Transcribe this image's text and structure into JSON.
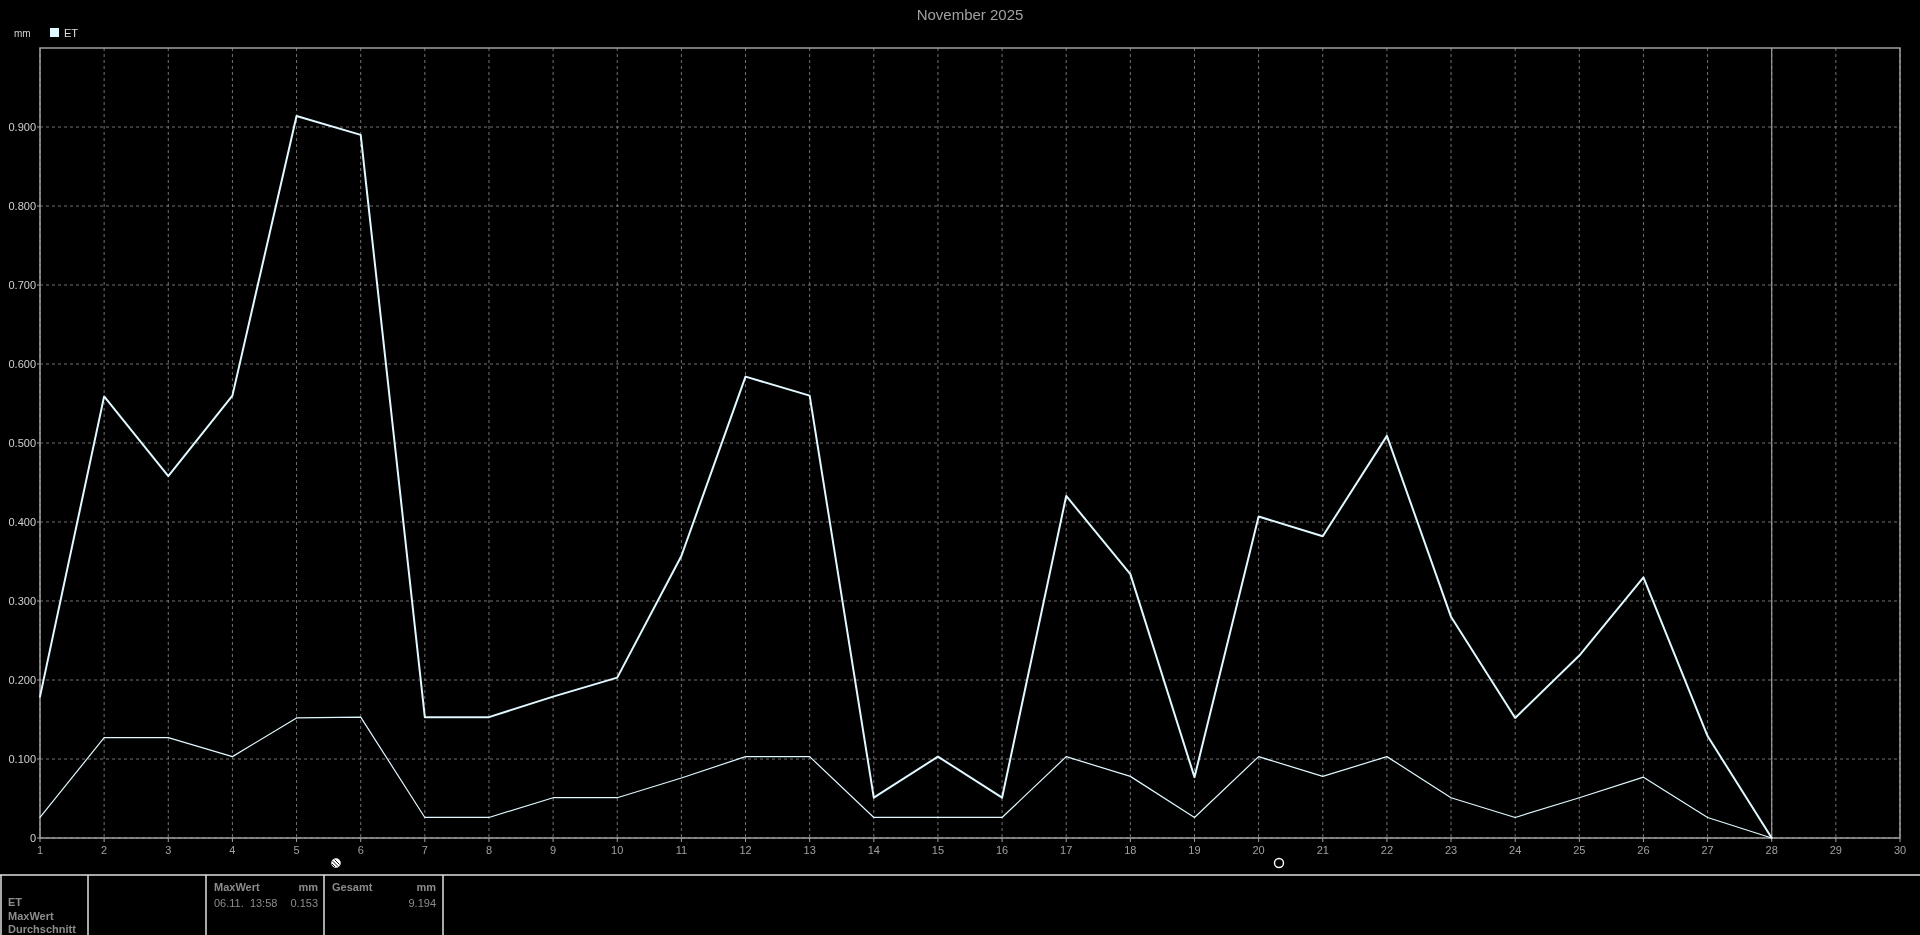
{
  "chart_data": {
    "type": "line",
    "title": "November 2025",
    "ylabel": "mm",
    "x": [
      1,
      2,
      3,
      4,
      5,
      6,
      7,
      8,
      9,
      10,
      11,
      12,
      13,
      14,
      15,
      16,
      17,
      18,
      19,
      20,
      21,
      22,
      23,
      24,
      25,
      26,
      27,
      28
    ],
    "series": [
      {
        "name": "ET",
        "color": "#e0f8ff",
        "values": [
          0.179,
          0.559,
          0.458,
          0.56,
          0.914,
          0.89,
          0.153,
          0.153,
          0.179,
          0.203,
          0.357,
          0.584,
          0.56,
          0.051,
          0.103,
          0.051,
          0.433,
          0.334,
          0.077,
          0.407,
          0.382,
          0.509,
          0.28,
          0.152,
          0.231,
          0.33,
          0.129,
          0
        ]
      },
      {
        "color": "#e0f8ff",
        "values": [
          0.026,
          0.127,
          0.127,
          0.103,
          0.152,
          0.153,
          0.026,
          0.026,
          0.051,
          0.051,
          0.076,
          0.103,
          0.103,
          0.026,
          0.026,
          0.026,
          0.103,
          0.078,
          0.026,
          0.103,
          0.078,
          0.103,
          0.051,
          0.026,
          0.051,
          0.077,
          0.026,
          0
        ]
      }
    ],
    "xlim": [
      1,
      30
    ],
    "xticks": [
      1,
      2,
      3,
      4,
      5,
      6,
      7,
      8,
      9,
      10,
      11,
      12,
      13,
      14,
      15,
      16,
      17,
      18,
      19,
      20,
      21,
      22,
      23,
      24,
      25,
      26,
      27,
      28,
      29,
      30
    ],
    "ylim": [
      0,
      1
    ],
    "yticks": [
      0,
      {
        "value": 0.1,
        "label": "0.100"
      },
      {
        "value": 0.2,
        "label": "0.200"
      },
      {
        "value": 0.3,
        "label": "0.300"
      },
      {
        "value": 0.4,
        "label": "0.400"
      },
      {
        "value": 0.5,
        "label": "0.500"
      },
      {
        "value": 0.6,
        "label": "0.600"
      },
      {
        "value": 0.7,
        "label": "0.700"
      },
      {
        "value": 0.8,
        "label": "0.800"
      },
      {
        "value": 0.9,
        "label": "0.900"
      }
    ],
    "ref_lines": [
      {
        "axis": "x",
        "value": 28,
        "color": "#a0a0a0"
      }
    ],
    "grid": true,
    "legend": "top left",
    "marker": "none",
    "line_style": "solid",
    "annotations": [
      "ET",
      "MaxWert",
      "Durchschnitt",
      "MaxWert",
      "mm",
      "06.11.  13:58",
      "0.153",
      "Gesamt",
      "mm",
      "9.194"
    ]
  }
}
